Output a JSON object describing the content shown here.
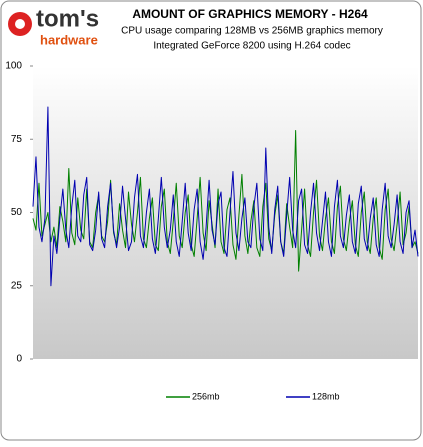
{
  "chart_data": {
    "type": "line",
    "brand": "tom's",
    "brand_sub": "hardware",
    "title": "AMOUNT OF GRAPHICS MEMORY - H264",
    "subtitle": [
      "CPU usage comparing 128MB vs 256MB graphics memory",
      "Integrated GeForce 8200 using H.264 codec"
    ],
    "categories": [
      null,
      null,
      null,
      null,
      null,
      null,
      null,
      null,
      null,
      null,
      null,
      null,
      null,
      null,
      null,
      null,
      null,
      null,
      null,
      null,
      null,
      null,
      null,
      null,
      null,
      null,
      null,
      null,
      null,
      null,
      null,
      null,
      null,
      null,
      null,
      null,
      null,
      null,
      null,
      null,
      null,
      null,
      null,
      null,
      null,
      null,
      null,
      null,
      null,
      null,
      null,
      null,
      null,
      null,
      null,
      null,
      null,
      null,
      null,
      null,
      null,
      null,
      null,
      null,
      null,
      null,
      null,
      null,
      null,
      null,
      null,
      null,
      null,
      null,
      null,
      null,
      null,
      null,
      null,
      null,
      null,
      null,
      null,
      null,
      null,
      null,
      null,
      null,
      null,
      null,
      null,
      null,
      null,
      null,
      null,
      null,
      null,
      null,
      null,
      null,
      null,
      null,
      null,
      null,
      null,
      null,
      null,
      null,
      null,
      null,
      null,
      null,
      null,
      null,
      null,
      null,
      null,
      null,
      null,
      null,
      null,
      null,
      null,
      null,
      null,
      null,
      null,
      null,
      null,
      null
    ],
    "series": [
      {
        "name": "256mb",
        "color": "#008000",
        "values": [
          48,
          44,
          60,
          42,
          46,
          50,
          40,
          45,
          38,
          52,
          47,
          40,
          65,
          43,
          39,
          55,
          44,
          41,
          58,
          40,
          38,
          50,
          56,
          42,
          40,
          47,
          61,
          43,
          39,
          53,
          44,
          38,
          57,
          46,
          40,
          50,
          62,
          41,
          38,
          48,
          55,
          39,
          37,
          52,
          58,
          40,
          36,
          47,
          60,
          42,
          38,
          50,
          56,
          39,
          35,
          48,
          62,
          43,
          37,
          54,
          46,
          38,
          58,
          40,
          36,
          51,
          55,
          39,
          34,
          49,
          63,
          42,
          36,
          47,
          54,
          38,
          35,
          52,
          60,
          41,
          37,
          49,
          56,
          40,
          36,
          53,
          45,
          38,
          78,
          30,
          44,
          58,
          39,
          35,
          50,
          61,
          42,
          37,
          48,
          55,
          40,
          36,
          52,
          59,
          41,
          37,
          47,
          54,
          39,
          35,
          50,
          57,
          40,
          36,
          48,
          55,
          38,
          34,
          51,
          58,
          41,
          37,
          46,
          57,
          39,
          43,
          52,
          38,
          40,
          36
        ]
      },
      {
        "name": "128mb",
        "color": "#0000b0",
        "values": [
          52,
          69,
          45,
          40,
          48,
          86,
          25,
          42,
          36,
          48,
          58,
          44,
          38,
          52,
          61,
          42,
          40,
          56,
          62,
          39,
          37,
          44,
          57,
          41,
          38,
          52,
          60,
          44,
          38,
          45,
          59,
          48,
          37,
          40,
          55,
          63,
          42,
          38,
          50,
          58,
          41,
          36,
          48,
          62,
          45,
          38,
          44,
          56,
          40,
          35,
          47,
          60,
          43,
          37,
          51,
          58,
          40,
          34,
          45,
          61,
          44,
          39,
          53,
          57,
          38,
          35,
          50,
          64,
          43,
          37,
          48,
          55,
          40,
          38,
          52,
          60,
          41,
          37,
          72,
          45,
          36,
          51,
          59,
          40,
          35,
          49,
          62,
          44,
          38,
          54,
          58,
          39,
          36,
          50,
          60,
          43,
          37,
          47,
          57,
          40,
          35,
          52,
          61,
          42,
          38,
          49,
          56,
          40,
          36,
          53,
          59,
          41,
          37,
          48,
          55,
          39,
          35,
          51,
          60,
          42,
          38,
          46,
          56,
          40,
          36,
          50,
          54,
          38,
          44,
          35
        ]
      }
    ],
    "ylim": [
      0,
      100
    ],
    "yticks": [
      0,
      25,
      50,
      75,
      100
    ],
    "grid": false,
    "legend": "bottom"
  }
}
